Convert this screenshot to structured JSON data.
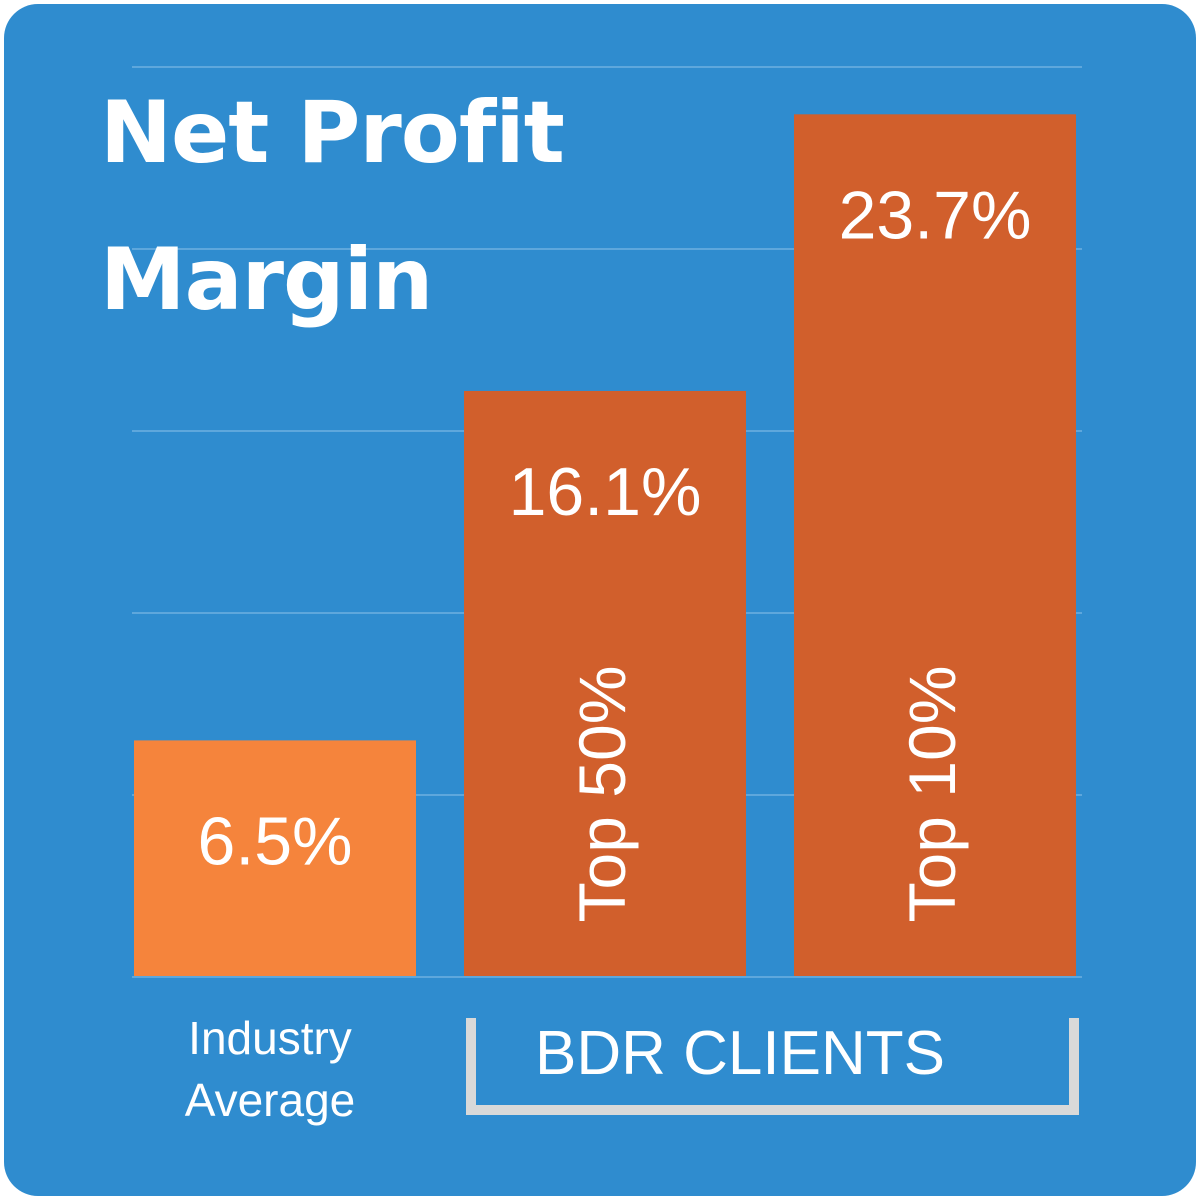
{
  "chart_data": {
    "type": "bar",
    "title": "Net Profit Margin",
    "title_lines": [
      "Net Profit",
      "Margin"
    ],
    "categories": [
      "Industry Average",
      "Top 50%",
      "Top 10%"
    ],
    "values": [
      6.5,
      16.1,
      23.7
    ],
    "value_labels": [
      "6.5%",
      "16.1%",
      "23.7%"
    ],
    "inner_labels": [
      "",
      "Top 50%",
      "Top 10%"
    ],
    "category_label_lines": [
      [
        "Industry",
        "Average"
      ]
    ],
    "group_label": "BDR CLIENTS",
    "group_members": [
      "Top 50%",
      "Top 10%"
    ],
    "ylim": [
      0,
      25
    ],
    "grid": true,
    "xlabel": "",
    "ylabel": "",
    "colors": {
      "background": "#2f8ccf",
      "page": "#ffffff",
      "industry_bar": "#f5843c",
      "bdr_bar": "#d15f2c",
      "grid": "#5ea7dc",
      "bracket": "#d9d9d9",
      "text": "#ffffff"
    }
  }
}
